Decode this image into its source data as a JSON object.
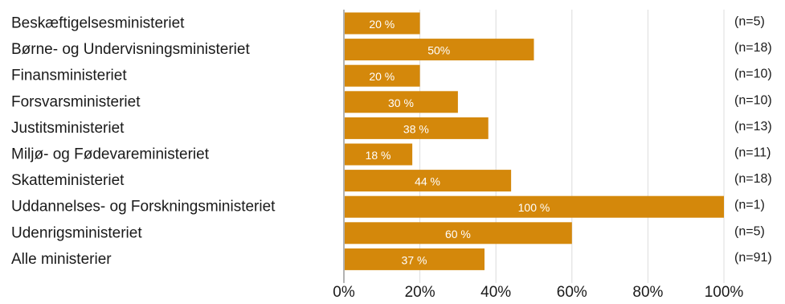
{
  "chart_data": {
    "type": "bar",
    "orientation": "horizontal",
    "categories": [
      "Beskæftigelsesministeriet",
      "Børne- og Undervisningsministeriet",
      "Finansministeriet",
      "Forsvarsministeriet",
      "Justitsministeriet",
      "Miljø- og  Fødevareministeriet",
      "Skatteministeriet",
      "Uddannelses- og Forskningsministeriet",
      "Udenrigsministeriet",
      "Alle ministerier"
    ],
    "values": [
      20,
      50,
      20,
      30,
      38,
      18,
      44,
      100,
      60,
      37
    ],
    "value_labels": [
      "20 %",
      "50%",
      "20 %",
      "30 %",
      "38 %",
      "18 %",
      "44 %",
      "100 %",
      "60 %",
      "37 %"
    ],
    "n_labels": [
      "(n=5)",
      "(n=18)",
      "(n=10)",
      "(n=10)",
      "(n=13)",
      "(n=11)",
      "(n=18)",
      "(n=1)",
      "(n=5)",
      "(n=91)"
    ],
    "xlim": [
      0,
      100
    ],
    "xticks": [
      0,
      20,
      40,
      60,
      80,
      100
    ],
    "xtick_labels": [
      "0%",
      "20%",
      "40%",
      "60%",
      "80%",
      "100%"
    ],
    "bar_color": "#D4880B",
    "grid": true,
    "title": "",
    "xlabel": "",
    "ylabel": ""
  }
}
